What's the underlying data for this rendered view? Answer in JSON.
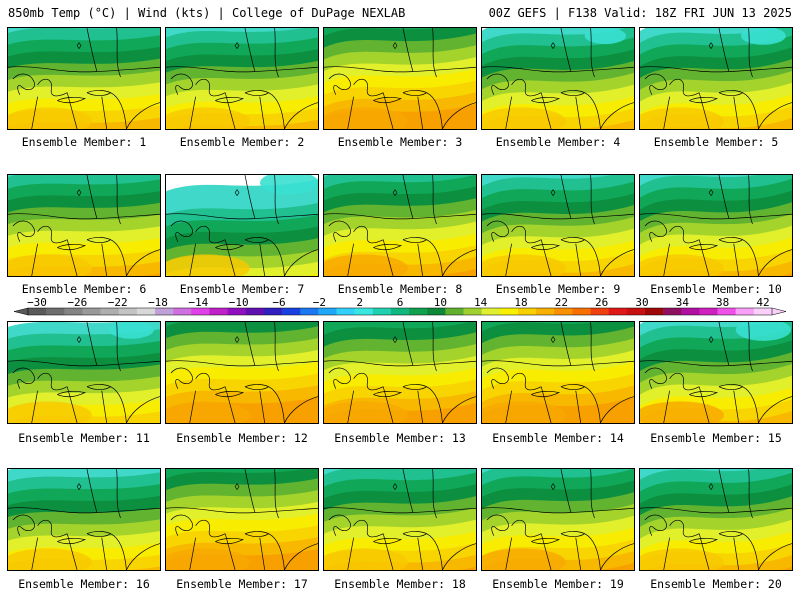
{
  "header": {
    "left": "850mb Temp (°C) | Wind (kts) | College of DuPage NEXLAB",
    "right": "00Z GEFS | F138 Valid: 18Z FRI JUN 13 2025"
  },
  "member_label_prefix": "Ensemble Member:",
  "members": [
    {
      "label": "Ensemble Member: 1",
      "warmth": 0.55,
      "cold_intrusion": 0.45
    },
    {
      "label": "Ensemble Member: 2",
      "warmth": 0.5,
      "cold_intrusion": 0.5
    },
    {
      "label": "Ensemble Member: 3",
      "warmth": 0.75,
      "cold_intrusion": 0.25
    },
    {
      "label": "Ensemble Member: 4",
      "warmth": 0.5,
      "cold_intrusion": 0.6
    },
    {
      "label": "Ensemble Member: 5",
      "warmth": 0.55,
      "cold_intrusion": 0.65
    },
    {
      "label": "Ensemble Member: 6",
      "warmth": 0.6,
      "cold_intrusion": 0.4
    },
    {
      "label": "Ensemble Member: 7",
      "warmth": 0.2,
      "cold_intrusion": 0.85
    },
    {
      "label": "Ensemble Member: 8",
      "warmth": 0.65,
      "cold_intrusion": 0.35
    },
    {
      "label": "Ensemble Member: 9",
      "warmth": 0.5,
      "cold_intrusion": 0.45
    },
    {
      "label": "Ensemble Member: 10",
      "warmth": 0.55,
      "cold_intrusion": 0.45
    },
    {
      "label": "Ensemble Member: 11",
      "warmth": 0.35,
      "cold_intrusion": 0.65
    },
    {
      "label": "Ensemble Member: 12",
      "warmth": 0.8,
      "cold_intrusion": 0.25
    },
    {
      "label": "Ensemble Member: 13",
      "warmth": 0.7,
      "cold_intrusion": 0.4
    },
    {
      "label": "Ensemble Member: 14",
      "warmth": 0.8,
      "cold_intrusion": 0.35
    },
    {
      "label": "Ensemble Member: 15",
      "warmth": 0.65,
      "cold_intrusion": 0.8
    },
    {
      "label": "Ensemble Member: 16",
      "warmth": 0.4,
      "cold_intrusion": 0.55
    },
    {
      "label": "Ensemble Member: 17",
      "warmth": 0.7,
      "cold_intrusion": 0.3
    },
    {
      "label": "Ensemble Member: 18",
      "warmth": 0.6,
      "cold_intrusion": 0.45
    },
    {
      "label": "Ensemble Member: 19",
      "warmth": 0.65,
      "cold_intrusion": 0.4
    },
    {
      "label": "Ensemble Member: 20",
      "warmth": 0.55,
      "cold_intrusion": 0.45
    }
  ],
  "colorbar": {
    "unit": "°C",
    "tick_labels": [
      "-30",
      "-26",
      "-22",
      "-18",
      "-14",
      "-10",
      "-6",
      "-2",
      "2",
      "6",
      "10",
      "14",
      "18",
      "22",
      "26",
      "30",
      "34",
      "38",
      "42"
    ],
    "bin_colors": [
      "#5a5a5a",
      "#6e6e6e",
      "#848484",
      "#999999",
      "#aeaeae",
      "#c3c3c3",
      "#d8d8d8",
      "#c0a0d8",
      "#d070e0",
      "#e040e8",
      "#c020c8",
      "#9010c0",
      "#6010b0",
      "#3020c0",
      "#1840e0",
      "#1c78f0",
      "#20a8f8",
      "#30d0f8",
      "#38e8e0",
      "#20d0b0",
      "#10b880",
      "#10a050",
      "#0c8838",
      "#60b030",
      "#a0d030",
      "#e0f030",
      "#f8f000",
      "#f8d000",
      "#f8b000",
      "#f89000",
      "#f87000",
      "#f04010",
      "#e01818",
      "#c81010",
      "#a00808",
      "#901060",
      "#b010a0",
      "#d020c0",
      "#f050e8",
      "#f8a0f8",
      "#f8d0f8"
    ]
  }
}
